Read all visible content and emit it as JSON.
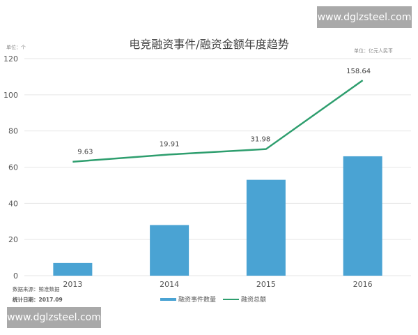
{
  "header": {
    "title": "电竞融资事件/融资金额年度趋势",
    "unit_left": "单位：个",
    "unit_right": "单位：亿元人民币"
  },
  "watermarks": {
    "top": "www.dglzsteel.com",
    "bottom": "www.dglzsteel.com"
  },
  "footer": {
    "source": "数据来源：鲸准数据",
    "date": "统计日期：2017.09"
  },
  "legend": {
    "bar_label": "融资事件数量",
    "line_label": "融资总额"
  },
  "colors": {
    "bar": "#4aa3d3",
    "line": "#2e9e6e",
    "grid": "#e6e6e6"
  },
  "chart_data": {
    "type": "bar+line",
    "title": "电竞融资事件/融资金额年度趋势",
    "xlabel": "",
    "ylabel": "单位：个",
    "y2label": "单位：亿元人民币",
    "ylim": [
      0,
      120
    ],
    "yticks": [
      0,
      20,
      40,
      60,
      80,
      100,
      120
    ],
    "grid": true,
    "legend_position": "bottom",
    "categories": [
      "2013",
      "2014",
      "2015",
      "2016"
    ],
    "series": [
      {
        "name": "融资事件数量",
        "type": "bar",
        "values": [
          7,
          28,
          53,
          66
        ]
      },
      {
        "name": "融资总额",
        "type": "line",
        "values": [
          9.63,
          19.91,
          31.98,
          158.64
        ],
        "data_labels": [
          "9.63",
          "19.91",
          "31.98",
          "158.64"
        ],
        "plotted_position_left_axis": [
          63,
          67,
          70,
          108
        ]
      }
    ]
  }
}
